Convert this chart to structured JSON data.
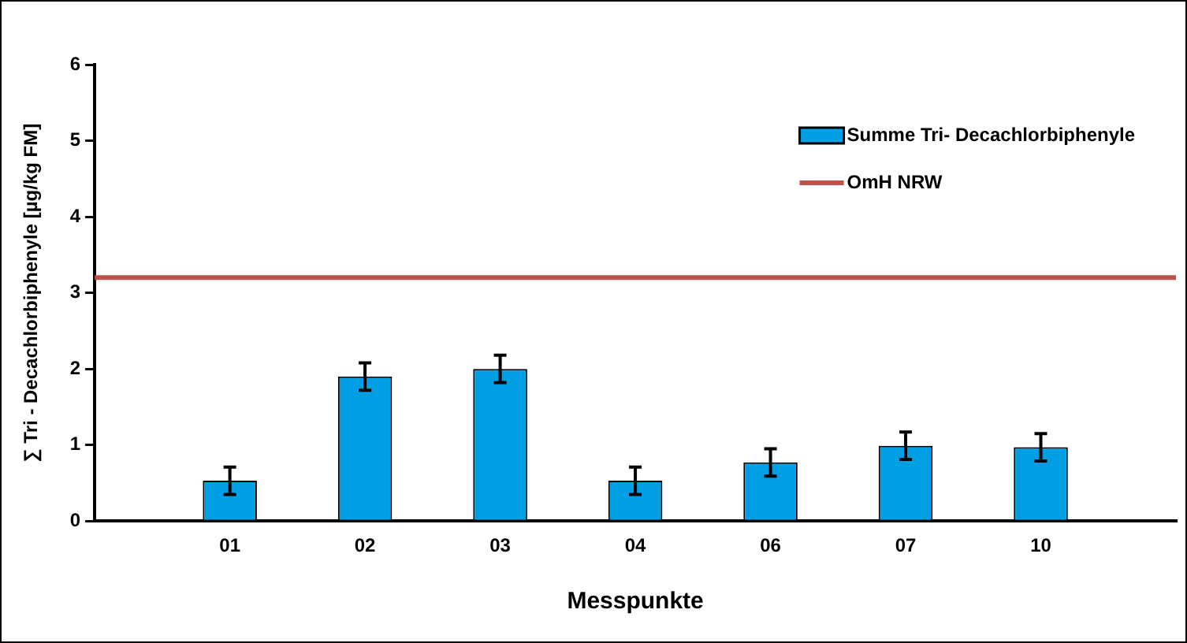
{
  "chart_data": {
    "type": "bar",
    "xlabel": "Messpunkte",
    "ylabel": "∑ Tri - Decachlorbiphenyle [µg/kg FM]",
    "categories": [
      null,
      "01",
      "02",
      "03",
      "04",
      "06",
      "07",
      "10",
      null
    ],
    "series": [
      {
        "name": "Summe Tri- Decachlorbiphenyle",
        "color": "#009fe3",
        "values": [
          null,
          0.53,
          1.9,
          2.0,
          0.53,
          0.77,
          0.99,
          0.97,
          null
        ],
        "errors": [
          null,
          0.18,
          0.18,
          0.18,
          0.18,
          0.18,
          0.18,
          0.18,
          null
        ]
      }
    ],
    "ylim": [
      0,
      6
    ],
    "yticks": [
      0,
      1,
      2,
      3,
      4,
      5,
      6
    ],
    "grid": false,
    "legend": "top right",
    "ref_lines": [
      {
        "axis": "y",
        "value": 3.2,
        "label": "OmH NRW",
        "color": "#c0504d"
      }
    ]
  }
}
